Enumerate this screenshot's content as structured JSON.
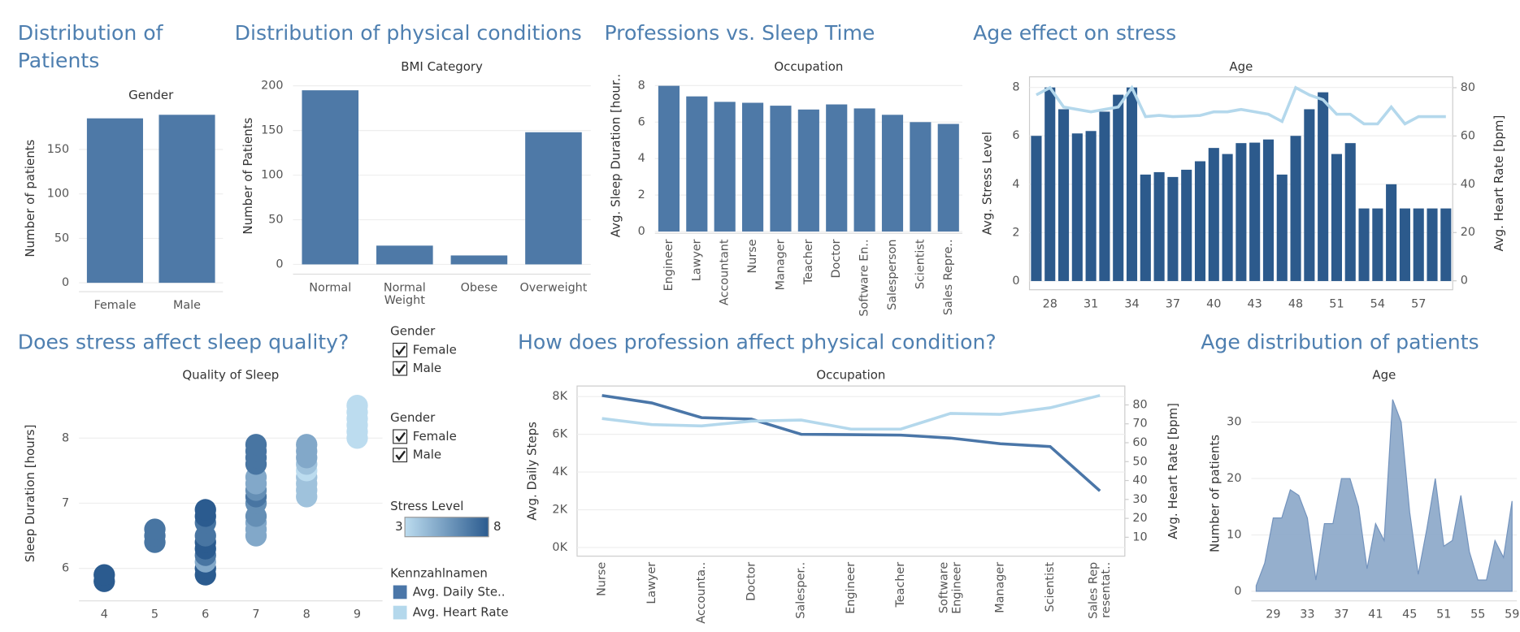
{
  "chart_data": [
    {
      "type": "bar",
      "title": "Distribution of Patients",
      "header": "Gender",
      "ylabel": "Number of patients",
      "categories": [
        "Female",
        "Male"
      ],
      "values": [
        185,
        189
      ],
      "color": "#4e79a7",
      "ylim": [
        -10,
        200
      ],
      "yticks": [
        0,
        50,
        100,
        150
      ],
      "grid": true
    },
    {
      "type": "bar",
      "title": "Distribution of physical conditions",
      "header": "BMI Category",
      "ylabel": "Number of Patients",
      "categories": [
        "Normal",
        "Normal\nWeight",
        "Obese",
        "Overweight"
      ],
      "values": [
        195,
        21,
        10,
        148
      ],
      "color": "#4e79a7",
      "ylim": [
        -11,
        209
      ],
      "yticks": [
        0,
        50,
        100,
        150,
        200
      ],
      "grid": true
    },
    {
      "type": "bar",
      "title": "Professions vs. Sleep Time",
      "header": "Occupation",
      "ylabel": "Avg. Sleep Duration [hour..",
      "categories": [
        "Engineer",
        "Lawyer",
        "Accountant",
        "Nurse",
        "Manager",
        "Teacher",
        "Doctor",
        "Software En..",
        "Salesperson",
        "Scientist",
        "Sales Repre.."
      ],
      "values": [
        7.99,
        7.41,
        7.11,
        7.06,
        6.9,
        6.69,
        6.97,
        6.75,
        6.4,
        6.0,
        5.9
      ],
      "color": "#4e79a7",
      "ylim": [
        -0.1,
        8.43
      ],
      "yticks": [
        0,
        2,
        4,
        6,
        8
      ],
      "grid": true
    },
    {
      "type": "bar_line",
      "title": "Age effect on stress",
      "header": "Age",
      "categories": [
        null,
        28,
        null,
        null,
        31,
        null,
        null,
        34,
        null,
        null,
        37,
        null,
        null,
        40,
        null,
        null,
        43,
        null,
        null,
        48,
        null,
        null,
        51,
        null,
        null,
        54,
        null,
        null,
        57,
        null,
        null
      ],
      "series": [
        {
          "name": "Avg. Stress Level",
          "color": "#2c5a8c",
          "values": [
            6,
            8,
            7.1,
            6.1,
            6.2,
            7,
            7.7,
            8,
            4.4,
            4.5,
            4.3,
            4.6,
            4.95,
            5.5,
            5.25,
            5.7,
            5.72,
            5.85,
            4.4,
            6,
            7.1,
            7.8,
            5.25,
            5.7,
            3,
            3,
            4,
            3,
            3,
            3,
            3
          ]
        },
        {
          "name": "Avg. Heart Rate [bpm]",
          "color": "#b4d8ec",
          "axis": "y2",
          "values": [
            77,
            80,
            72,
            71,
            70,
            71,
            72,
            80,
            68,
            68.5,
            68,
            68.2,
            68.5,
            70,
            70,
            71,
            70,
            69,
            66,
            80,
            77,
            75,
            69,
            69,
            65,
            65,
            72,
            65,
            68,
            68,
            68
          ]
        }
      ],
      "ylim": [
        -0.36,
        8.44
      ],
      "yticks": [
        0,
        2,
        4,
        6,
        8
      ],
      "y2lim": [
        -3.7,
        84.5
      ],
      "y2ticks": [
        0,
        20,
        40,
        60,
        80
      ],
      "grid": true
    },
    {
      "type": "scatter",
      "title": "Does stress affect sleep quality?",
      "header": "Quality of Sleep",
      "ylabel": "Sleep Duration [hours]",
      "x": [
        4,
        4,
        5,
        5,
        5,
        6,
        6,
        6,
        6,
        6,
        6,
        6,
        6,
        6,
        6,
        7,
        7,
        7,
        7,
        7,
        7,
        7,
        7,
        7,
        7,
        7,
        7,
        7,
        8,
        8,
        8,
        8,
        8,
        8,
        8,
        8,
        8,
        9,
        9,
        9,
        9,
        9,
        9
      ],
      "values": [
        5.8,
        5.9,
        6.4,
        6.5,
        6.6,
        5.9,
        6.0,
        6.1,
        6.2,
        6.3,
        6.4,
        6.5,
        6.7,
        6.8,
        6.9,
        6.5,
        6.6,
        6.7,
        6.8,
        7.0,
        7.1,
        7.2,
        7.3,
        7.4,
        7.6,
        7.7,
        7.8,
        7.9,
        7.1,
        7.2,
        7.3,
        7.4,
        7.5,
        7.6,
        7.7,
        7.8,
        7.9,
        8.0,
        8.1,
        8.2,
        8.3,
        8.4,
        8.5
      ],
      "color_values": [
        8,
        8,
        7,
        7,
        7,
        8,
        8,
        5,
        7,
        8,
        8,
        7,
        7,
        8,
        8,
        5,
        5,
        5,
        6,
        6,
        7,
        6,
        5,
        5,
        7,
        7,
        7,
        7,
        4,
        4,
        4,
        4,
        3,
        4,
        5,
        5,
        5,
        3,
        3,
        3,
        3,
        3,
        3
      ],
      "color_lim": [
        3,
        8
      ],
      "colors": [
        "#bcdcef",
        "#2b5b8f"
      ],
      "xlim": [
        3.5,
        9.5
      ],
      "xticks": [
        4,
        5,
        6,
        7,
        8,
        9
      ],
      "ylim": [
        5.5,
        8.8
      ],
      "yticks": [
        6,
        7,
        8
      ],
      "grid": true
    },
    {
      "type": "line",
      "title": "How does profession affect physical condition?",
      "header": "Occupation",
      "categories": [
        "Nurse",
        "Lawyer",
        "Accounta..",
        "Doctor",
        "Salesper..",
        "Engineer",
        "Teacher",
        "Software\nEngineer",
        "Manager",
        "Scientist",
        "Sales Rep\nresentat.."
      ],
      "series": [
        {
          "name": "Avg. Daily Steps",
          "color": "#4a76a8",
          "values": [
            8057,
            7661,
            6882,
            6808,
            6000,
            5981,
            5957,
            5800,
            5500,
            5350,
            3000
          ]
        },
        {
          "name": "Avg. Heart Rate [bpm]",
          "color": "#b4d8ec",
          "axis": "y2",
          "values": [
            72.8,
            69.6,
            68.9,
            71.4,
            72,
            67.2,
            67.2,
            75.5,
            75,
            78.5,
            85
          ]
        }
      ],
      "ylim": [
        -460,
        8560
      ],
      "yticks": [
        {
          "value": 0,
          "label": "0K"
        },
        {
          "value": 2000,
          "label": "2K"
        },
        {
          "value": 4000,
          "label": "4K"
        },
        {
          "value": 6000,
          "label": "6K"
        },
        {
          "value": 8000,
          "label": "8K"
        }
      ],
      "y2lim": [
        0,
        90
      ],
      "y2ticks": [
        10,
        20,
        30,
        40,
        50,
        60,
        70,
        80
      ],
      "grid": true
    },
    {
      "type": "area",
      "title": "Age distribution of patients",
      "header": "Age",
      "ylabel": "Number of patients",
      "categories": [
        null,
        null,
        29,
        null,
        null,
        null,
        33,
        null,
        null,
        null,
        37,
        null,
        null,
        null,
        41,
        null,
        null,
        null,
        45,
        null,
        null,
        null,
        51,
        null,
        null,
        null,
        55,
        null,
        null,
        null,
        59
      ],
      "values": [
        1,
        5,
        13,
        13,
        18,
        17,
        13,
        2,
        12,
        12,
        20,
        20,
        15,
        4,
        12,
        9,
        34,
        30,
        14,
        3,
        11,
        20,
        8,
        9,
        17,
        7,
        2,
        2,
        9,
        6,
        16
      ],
      "color": "#8aa6c8",
      "ylim": [
        -1.7,
        36.4
      ],
      "yticks": [
        0,
        10,
        20,
        30
      ],
      "grid": true
    }
  ],
  "legend_panel": {
    "filters": [
      {
        "title": "Gender",
        "items": [
          "Female",
          "Male"
        ]
      },
      {
        "title": "Gender",
        "items": [
          "Female",
          "Male"
        ]
      }
    ],
    "color_legend_title": "Stress Level",
    "measures": {
      "title": "Kennzahlnamen",
      "items": [
        "Avg. Daily Ste..",
        "Avg. Heart Rate"
      ]
    }
  }
}
